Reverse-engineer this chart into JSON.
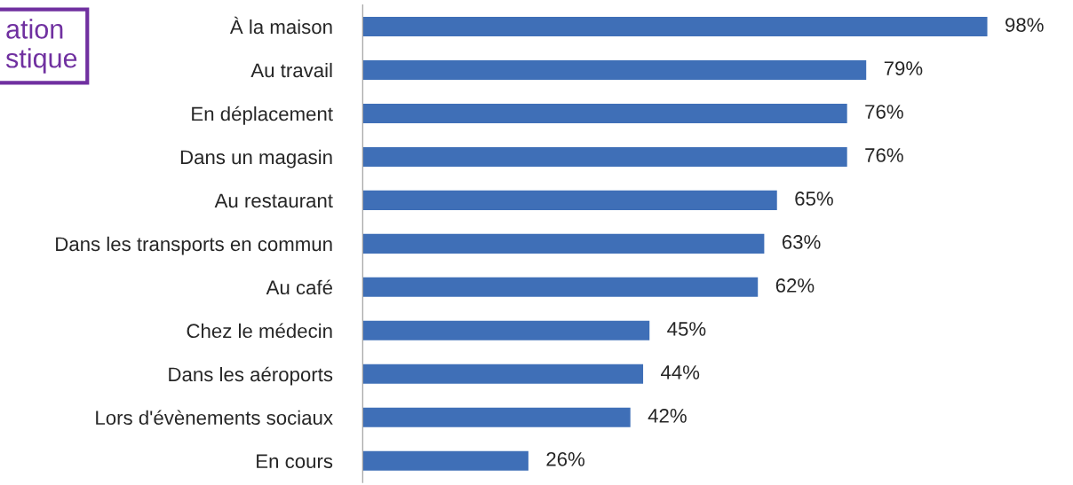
{
  "chart_data": {
    "type": "bar",
    "orientation": "horizontal",
    "categories": [
      "À la maison",
      "Au travail",
      "En déplacement",
      "Dans un magasin",
      "Au restaurant",
      "Dans les transports en commun",
      "Au café",
      "Chez le médecin",
      "Dans les aéroports",
      "Lors d'évènements sociaux",
      "En cours"
    ],
    "values": [
      98,
      79,
      76,
      76,
      65,
      63,
      62,
      45,
      44,
      42,
      26
    ],
    "value_labels": [
      "98%",
      "79%",
      "76%",
      "76%",
      "65%",
      "63%",
      "62%",
      "45%",
      "44%",
      "42%",
      "26%"
    ],
    "color": "#3f6fb7",
    "annotations": [
      "ation\nstique"
    ],
    "grid": false,
    "legend": false
  }
}
